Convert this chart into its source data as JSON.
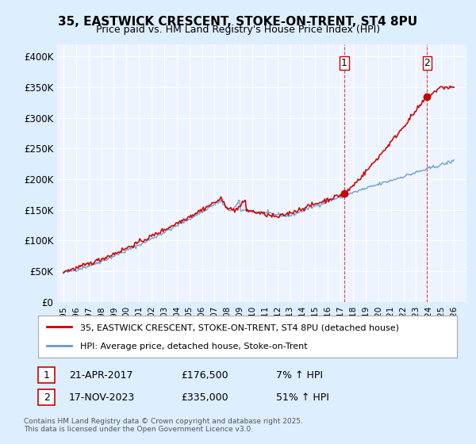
{
  "title": "35, EASTWICK CRESCENT, STOKE-ON-TRENT, ST4 8PU",
  "subtitle": "Price paid vs. HM Land Registry's House Price Index (HPI)",
  "ylabel_ticks": [
    "£0",
    "£50K",
    "£100K",
    "£150K",
    "£200K",
    "£250K",
    "£300K",
    "£350K",
    "£400K"
  ],
  "ytick_values": [
    0,
    50000,
    100000,
    150000,
    200000,
    250000,
    300000,
    350000,
    400000
  ],
  "ylim": [
    0,
    420000
  ],
  "xlim_start": 1995.0,
  "xlim_end": 2026.5,
  "transaction1": {
    "date": "21-APR-2017",
    "price": 176500,
    "year": 2017.3,
    "label": "1",
    "hpi_pct": "7%"
  },
  "transaction2": {
    "date": "17-NOV-2023",
    "price": 335000,
    "year": 2023.88,
    "label": "2",
    "hpi_pct": "51%"
  },
  "legend_line1": "35, EASTWICK CRESCENT, STOKE-ON-TRENT, ST4 8PU (detached house)",
  "legend_line2": "HPI: Average price, detached house, Stoke-on-Trent",
  "footer": "Contains HM Land Registry data © Crown copyright and database right 2025.\nThis data is licensed under the Open Government Licence v3.0.",
  "line_color_red": "#cc0000",
  "line_color_blue": "#6699cc",
  "bg_color": "#ddeeff",
  "plot_bg": "#eef4ff",
  "grid_color": "#ffffff",
  "dashed_color": "#cc0000"
}
